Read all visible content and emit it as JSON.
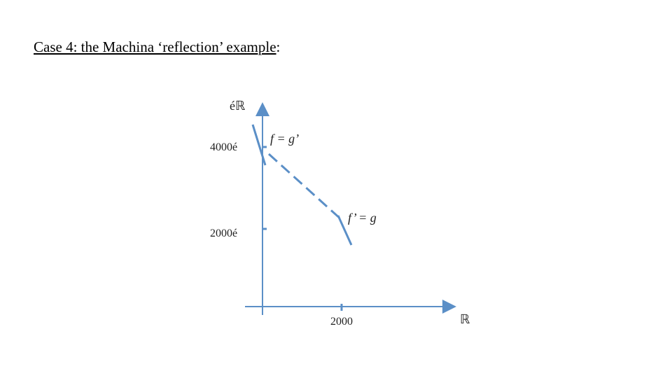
{
  "title": "Case 4: the Machina ‘reflection’ example",
  "title_suffix": ":",
  "y_axis_label": "éℝ",
  "x_axis_label": "ℝ",
  "y_ticks": [
    "4000é",
    "2000é"
  ],
  "x_ticks": [
    "2000"
  ],
  "point_labels": [
    "f = g’",
    "f’ = g"
  ]
}
